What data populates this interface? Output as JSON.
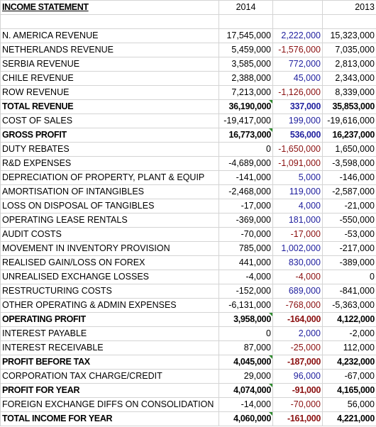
{
  "header": {
    "title": "INCOME STATEMENT",
    "col_2014": "2014",
    "col_2013": "2013"
  },
  "rows": [
    {
      "label": "N. AMERICA REVENUE",
      "y2014": "17,545,000",
      "diff": "2,222,000",
      "y2013": "15,323,000",
      "sign": "pos",
      "bold": false
    },
    {
      "label": "NETHERLANDS REVENUE",
      "y2014": "5,459,000",
      "diff": "-1,576,000",
      "y2013": "7,035,000",
      "sign": "neg",
      "bold": false
    },
    {
      "label": "SERBIA REVENUE",
      "y2014": "3,585,000",
      "diff": "772,000",
      "y2013": "2,813,000",
      "sign": "pos",
      "bold": false
    },
    {
      "label": "CHILE REVENUE",
      "y2014": "2,388,000",
      "diff": "45,000",
      "y2013": "2,343,000",
      "sign": "pos",
      "bold": false
    },
    {
      "label": "ROW REVENUE",
      "y2014": "7,213,000",
      "diff": "-1,126,000",
      "y2013": "8,339,000",
      "sign": "neg",
      "bold": false
    },
    {
      "label": "TOTAL REVENUE",
      "y2014": "36,190,000",
      "diff": "337,000",
      "y2013": "35,853,000",
      "sign": "pos",
      "bold": true,
      "flag": true
    },
    {
      "label": "COST OF SALES",
      "y2014": "-19,417,000",
      "diff": "199,000",
      "y2013": "-19,616,000",
      "sign": "pos",
      "bold": false
    },
    {
      "label": "GROSS PROFIT",
      "y2014": "16,773,000",
      "diff": "536,000",
      "y2013": "16,237,000",
      "sign": "pos",
      "bold": true,
      "flag": true
    },
    {
      "label": "DUTY REBATES",
      "y2014": "0",
      "diff": "-1,650,000",
      "y2013": "1,650,000",
      "sign": "neg",
      "bold": false
    },
    {
      "label": "R&D EXPENSES",
      "y2014": "-4,689,000",
      "diff": "-1,091,000",
      "y2013": "-3,598,000",
      "sign": "neg",
      "bold": false
    },
    {
      "label": "DEPRECIATION OF PROPERTY, PLANT & EQUIP",
      "y2014": "-141,000",
      "diff": "5,000",
      "y2013": "-146,000",
      "sign": "pos",
      "bold": false
    },
    {
      "label": "AMORTISATION OF INTANGIBLES",
      "y2014": "-2,468,000",
      "diff": "119,000",
      "y2013": "-2,587,000",
      "sign": "pos",
      "bold": false
    },
    {
      "label": "LOSS ON DISPOSAL OF TANGIBLES",
      "y2014": "-17,000",
      "diff": "4,000",
      "y2013": "-21,000",
      "sign": "pos",
      "bold": false
    },
    {
      "label": "OPERATING LEASE RENTALS",
      "y2014": "-369,000",
      "diff": "181,000",
      "y2013": "-550,000",
      "sign": "pos",
      "bold": false
    },
    {
      "label": "AUDIT COSTS",
      "y2014": "-70,000",
      "diff": "-17,000",
      "y2013": "-53,000",
      "sign": "neg",
      "bold": false
    },
    {
      "label": "MOVEMENT IN INVENTORY PROVISION",
      "y2014": "785,000",
      "diff": "1,002,000",
      "y2013": "-217,000",
      "sign": "pos",
      "bold": false
    },
    {
      "label": "REALISED GAIN/LOSS ON FOREX",
      "y2014": "441,000",
      "diff": "830,000",
      "y2013": "-389,000",
      "sign": "pos",
      "bold": false
    },
    {
      "label": "UNREALISED EXCHANGE LOSSES",
      "y2014": "-4,000",
      "diff": "-4,000",
      "y2013": "0",
      "sign": "neg",
      "bold": false
    },
    {
      "label": "RESTRUCTURING COSTS",
      "y2014": "-152,000",
      "diff": "689,000",
      "y2013": "-841,000",
      "sign": "pos",
      "bold": false
    },
    {
      "label": "OTHER OPERATING & ADMIN EXPENSES",
      "y2014": "-6,131,000",
      "diff": "-768,000",
      "y2013": "-5,363,000",
      "sign": "neg",
      "bold": false
    },
    {
      "label": "OPERATING PROFIT",
      "y2014": "3,958,000",
      "diff": "-164,000",
      "y2013": "4,122,000",
      "sign": "neg",
      "bold": true,
      "flag": true
    },
    {
      "label": "INTEREST PAYABLE",
      "y2014": "0",
      "diff": "2,000",
      "y2013": "-2,000",
      "sign": "pos",
      "bold": false
    },
    {
      "label": "INTEREST RECEIVABLE",
      "y2014": "87,000",
      "diff": "-25,000",
      "y2013": "112,000",
      "sign": "neg",
      "bold": false
    },
    {
      "label": "PROFIT BEFORE TAX",
      "y2014": "4,045,000",
      "diff": "-187,000",
      "y2013": "4,232,000",
      "sign": "neg",
      "bold": true,
      "flag": true
    },
    {
      "label": "CORPORATION TAX CHARGE/CREDIT",
      "y2014": "29,000",
      "diff": "96,000",
      "y2013": "-67,000",
      "sign": "pos",
      "bold": false
    },
    {
      "label": "PROFIT FOR YEAR",
      "y2014": "4,074,000",
      "diff": "-91,000",
      "y2013": "4,165,000",
      "sign": "neg",
      "bold": true,
      "flag": true
    },
    {
      "label": "FOREIGN EXCHANGE DIFFS ON CONSOLIDATION",
      "y2014": "-14,000",
      "diff": "-70,000",
      "y2013": "56,000",
      "sign": "neg",
      "bold": false
    },
    {
      "label": "TOTAL INCOME FOR YEAR",
      "y2014": "4,060,000",
      "diff": "-161,000",
      "y2013": "4,221,000",
      "sign": "neg",
      "bold": true,
      "flag": true
    }
  ]
}
